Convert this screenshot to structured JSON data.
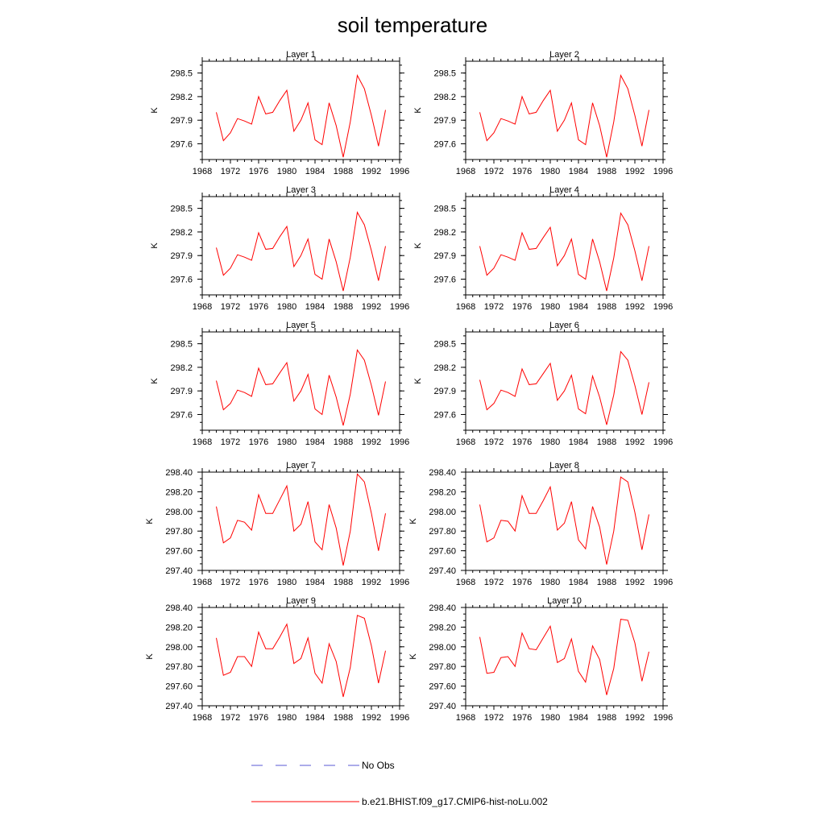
{
  "title": "soil temperature",
  "legend": {
    "items": [
      {
        "label": "No Obs",
        "color": "#5a5ad6",
        "style": "dashed"
      },
      {
        "label": "b.e21.BHIST.f09_g17.CMIP6-hist-noLu.002",
        "color": "#ff0000",
        "style": "solid"
      }
    ]
  },
  "chart_data": [
    {
      "type": "line",
      "title": "Layer 1",
      "ylabel": "K",
      "xlim": [
        1968,
        1996
      ],
      "xticks": [
        "1968",
        "1972",
        "1976",
        "1980",
        "1984",
        "1988",
        "1992",
        "1996"
      ],
      "ylim": [
        297.4,
        298.65
      ],
      "yticks": [
        "297.6",
        "297.9",
        "298.2",
        "298.5"
      ],
      "x": [
        1970,
        1971,
        1972,
        1973,
        1974,
        1975,
        1976,
        1977,
        1978,
        1979,
        1980,
        1981,
        1982,
        1983,
        1984,
        1985,
        1986,
        1987,
        1988,
        1989,
        1990,
        1991,
        1992,
        1993,
        1994
      ],
      "series": [
        {
          "name": "b.e21.BHIST.f09_g17.CMIP6-hist-noLu.002",
          "values": [
            298.0,
            297.64,
            297.74,
            297.92,
            297.89,
            297.85,
            298.2,
            297.98,
            298.0,
            298.15,
            298.28,
            297.76,
            297.9,
            298.12,
            297.65,
            297.59,
            298.12,
            297.83,
            297.43,
            297.88,
            298.47,
            298.3,
            297.96,
            297.57,
            298.03
          ]
        }
      ]
    },
    {
      "type": "line",
      "title": "Layer 2",
      "ylabel": "K",
      "xlim": [
        1968,
        1996
      ],
      "xticks": [
        "1968",
        "1972",
        "1976",
        "1980",
        "1984",
        "1988",
        "1992",
        "1996"
      ],
      "ylim": [
        297.4,
        298.65
      ],
      "yticks": [
        "297.6",
        "297.9",
        "298.2",
        "298.5"
      ],
      "x": [
        1970,
        1971,
        1972,
        1973,
        1974,
        1975,
        1976,
        1977,
        1978,
        1979,
        1980,
        1981,
        1982,
        1983,
        1984,
        1985,
        1986,
        1987,
        1988,
        1989,
        1990,
        1991,
        1992,
        1993,
        1994
      ],
      "series": [
        {
          "name": "b.e21.BHIST.f09_g17.CMIP6-hist-noLu.002",
          "values": [
            298.0,
            297.64,
            297.74,
            297.92,
            297.89,
            297.85,
            298.2,
            297.98,
            298.0,
            298.15,
            298.28,
            297.76,
            297.9,
            298.12,
            297.65,
            297.59,
            298.12,
            297.83,
            297.43,
            297.88,
            298.47,
            298.3,
            297.96,
            297.57,
            298.03
          ]
        }
      ]
    },
    {
      "type": "line",
      "title": "Layer 3",
      "ylabel": "K",
      "xlim": [
        1968,
        1996
      ],
      "xticks": [
        "1968",
        "1972",
        "1976",
        "1980",
        "1984",
        "1988",
        "1992",
        "1996"
      ],
      "ylim": [
        297.4,
        298.65
      ],
      "yticks": [
        "297.6",
        "297.9",
        "298.2",
        "298.5"
      ],
      "x": [
        1970,
        1971,
        1972,
        1973,
        1974,
        1975,
        1976,
        1977,
        1978,
        1979,
        1980,
        1981,
        1982,
        1983,
        1984,
        1985,
        1986,
        1987,
        1988,
        1989,
        1990,
        1991,
        1992,
        1993,
        1994
      ],
      "series": [
        {
          "name": "b.e21.BHIST.f09_g17.CMIP6-hist-noLu.002",
          "values": [
            298.0,
            297.65,
            297.74,
            297.91,
            297.88,
            297.84,
            298.19,
            297.98,
            297.99,
            298.14,
            298.27,
            297.76,
            297.9,
            298.11,
            297.66,
            297.6,
            298.11,
            297.82,
            297.45,
            297.88,
            298.45,
            298.29,
            297.96,
            297.58,
            298.02
          ]
        }
      ]
    },
    {
      "type": "line",
      "title": "Layer 4",
      "ylabel": "K",
      "xlim": [
        1968,
        1996
      ],
      "xticks": [
        "1968",
        "1972",
        "1976",
        "1980",
        "1984",
        "1988",
        "1992",
        "1996"
      ],
      "ylim": [
        297.4,
        298.65
      ],
      "yticks": [
        "297.6",
        "297.9",
        "298.2",
        "298.5"
      ],
      "x": [
        1970,
        1971,
        1972,
        1973,
        1974,
        1975,
        1976,
        1977,
        1978,
        1979,
        1980,
        1981,
        1982,
        1983,
        1984,
        1985,
        1986,
        1987,
        1988,
        1989,
        1990,
        1991,
        1992,
        1993,
        1994
      ],
      "series": [
        {
          "name": "b.e21.BHIST.f09_g17.CMIP6-hist-noLu.002",
          "values": [
            298.02,
            297.65,
            297.74,
            297.91,
            297.88,
            297.84,
            298.19,
            297.98,
            297.99,
            298.13,
            298.26,
            297.77,
            297.9,
            298.11,
            297.66,
            297.6,
            298.11,
            297.82,
            297.45,
            297.87,
            298.44,
            298.29,
            297.96,
            297.58,
            298.02
          ]
        }
      ]
    },
    {
      "type": "line",
      "title": "Layer 5",
      "ylabel": "K",
      "xlim": [
        1968,
        1996
      ],
      "xticks": [
        "1968",
        "1972",
        "1976",
        "1980",
        "1984",
        "1988",
        "1992",
        "1996"
      ],
      "ylim": [
        297.4,
        298.65
      ],
      "yticks": [
        "297.6",
        "297.9",
        "298.2",
        "298.5"
      ],
      "x": [
        1970,
        1971,
        1972,
        1973,
        1974,
        1975,
        1976,
        1977,
        1978,
        1979,
        1980,
        1981,
        1982,
        1983,
        1984,
        1985,
        1986,
        1987,
        1988,
        1989,
        1990,
        1991,
        1992,
        1993,
        1994
      ],
      "series": [
        {
          "name": "b.e21.BHIST.f09_g17.CMIP6-hist-noLu.002",
          "values": [
            298.03,
            297.66,
            297.74,
            297.91,
            297.88,
            297.83,
            298.19,
            297.98,
            297.99,
            298.13,
            298.26,
            297.77,
            297.9,
            298.11,
            297.67,
            297.6,
            298.1,
            297.82,
            297.46,
            297.86,
            298.42,
            298.29,
            297.97,
            297.59,
            298.02
          ]
        }
      ]
    },
    {
      "type": "line",
      "title": "Layer 6",
      "ylabel": "K",
      "xlim": [
        1968,
        1996
      ],
      "xticks": [
        "1968",
        "1972",
        "1976",
        "1980",
        "1984",
        "1988",
        "1992",
        "1996"
      ],
      "ylim": [
        297.4,
        298.65
      ],
      "yticks": [
        "297.6",
        "297.9",
        "298.2",
        "298.5"
      ],
      "x": [
        1970,
        1971,
        1972,
        1973,
        1974,
        1975,
        1976,
        1977,
        1978,
        1979,
        1980,
        1981,
        1982,
        1983,
        1984,
        1985,
        1986,
        1987,
        1988,
        1989,
        1990,
        1991,
        1992,
        1993,
        1994
      ],
      "series": [
        {
          "name": "b.e21.BHIST.f09_g17.CMIP6-hist-noLu.002",
          "values": [
            298.04,
            297.66,
            297.74,
            297.91,
            297.88,
            297.83,
            298.18,
            297.98,
            297.99,
            298.12,
            298.25,
            297.78,
            297.9,
            298.1,
            297.67,
            297.61,
            298.09,
            297.82,
            297.47,
            297.85,
            298.4,
            298.29,
            297.97,
            297.6,
            298.01
          ]
        }
      ]
    },
    {
      "type": "line",
      "title": "Layer 7",
      "ylabel": "K",
      "xlim": [
        1968,
        1996
      ],
      "xticks": [
        "1968",
        "1972",
        "1976",
        "1980",
        "1984",
        "1988",
        "1992",
        "1996"
      ],
      "ylim": [
        297.4,
        298.4
      ],
      "yticks": [
        "297.40",
        "297.60",
        "297.80",
        "298.00",
        "298.20",
        "298.40"
      ],
      "x": [
        1970,
        1971,
        1972,
        1973,
        1974,
        1975,
        1976,
        1977,
        1978,
        1979,
        1980,
        1981,
        1982,
        1983,
        1984,
        1985,
        1986,
        1987,
        1988,
        1989,
        1990,
        1991,
        1992,
        1993,
        1994
      ],
      "series": [
        {
          "name": "b.e21.BHIST.f09_g17.CMIP6-hist-noLu.002",
          "values": [
            298.05,
            297.68,
            297.73,
            297.91,
            297.89,
            297.81,
            298.17,
            297.98,
            297.98,
            298.12,
            298.26,
            297.8,
            297.87,
            298.1,
            297.69,
            297.61,
            298.07,
            297.83,
            297.45,
            297.8,
            298.38,
            298.3,
            297.98,
            297.6,
            297.98
          ]
        }
      ]
    },
    {
      "type": "line",
      "title": "Layer 8",
      "ylabel": "K",
      "xlim": [
        1968,
        1996
      ],
      "xticks": [
        "1968",
        "1972",
        "1976",
        "1980",
        "1984",
        "1988",
        "1992",
        "1996"
      ],
      "ylim": [
        297.4,
        298.4
      ],
      "yticks": [
        "297.40",
        "297.60",
        "297.80",
        "298.00",
        "298.20",
        "298.40"
      ],
      "x": [
        1970,
        1971,
        1972,
        1973,
        1974,
        1975,
        1976,
        1977,
        1978,
        1979,
        1980,
        1981,
        1982,
        1983,
        1984,
        1985,
        1986,
        1987,
        1988,
        1989,
        1990,
        1991,
        1992,
        1993,
        1994
      ],
      "series": [
        {
          "name": "b.e21.BHIST.f09_g17.CMIP6-hist-noLu.002",
          "values": [
            298.07,
            297.69,
            297.73,
            297.91,
            297.9,
            297.8,
            298.16,
            297.98,
            297.98,
            298.11,
            298.25,
            297.81,
            297.88,
            298.1,
            297.71,
            297.62,
            298.05,
            297.84,
            297.46,
            297.8,
            298.35,
            298.3,
            297.99,
            297.61,
            297.97
          ]
        }
      ]
    },
    {
      "type": "line",
      "title": "Layer 9",
      "ylabel": "K",
      "xlim": [
        1968,
        1996
      ],
      "xticks": [
        "1968",
        "1972",
        "1976",
        "1980",
        "1984",
        "1988",
        "1992",
        "1996"
      ],
      "ylim": [
        297.4,
        298.4
      ],
      "yticks": [
        "297.40",
        "297.60",
        "297.80",
        "298.00",
        "298.20",
        "298.40"
      ],
      "x": [
        1970,
        1971,
        1972,
        1973,
        1974,
        1975,
        1976,
        1977,
        1978,
        1979,
        1980,
        1981,
        1982,
        1983,
        1984,
        1985,
        1986,
        1987,
        1988,
        1989,
        1990,
        1991,
        1992,
        1993,
        1994
      ],
      "series": [
        {
          "name": "b.e21.BHIST.f09_g17.CMIP6-hist-noLu.002",
          "values": [
            298.09,
            297.71,
            297.74,
            297.9,
            297.9,
            297.8,
            298.15,
            297.98,
            297.98,
            298.1,
            298.23,
            297.83,
            297.88,
            298.09,
            297.73,
            297.63,
            298.03,
            297.85,
            297.49,
            297.79,
            298.32,
            298.29,
            298.01,
            297.63,
            297.96
          ]
        }
      ]
    },
    {
      "type": "line",
      "title": "Layer 10",
      "ylabel": "K",
      "xlim": [
        1968,
        1996
      ],
      "xticks": [
        "1968",
        "1972",
        "1976",
        "1980",
        "1984",
        "1988",
        "1992",
        "1996"
      ],
      "ylim": [
        297.4,
        298.4
      ],
      "yticks": [
        "297.40",
        "297.60",
        "297.80",
        "298.00",
        "298.20",
        "298.40"
      ],
      "x": [
        1970,
        1971,
        1972,
        1973,
        1974,
        1975,
        1976,
        1977,
        1978,
        1979,
        1980,
        1981,
        1982,
        1983,
        1984,
        1985,
        1986,
        1987,
        1988,
        1989,
        1990,
        1991,
        1992,
        1993,
        1994
      ],
      "series": [
        {
          "name": "b.e21.BHIST.f09_g17.CMIP6-hist-noLu.002",
          "values": [
            298.1,
            297.73,
            297.74,
            297.89,
            297.9,
            297.8,
            298.14,
            297.98,
            297.97,
            298.09,
            298.21,
            297.84,
            297.88,
            298.08,
            297.75,
            297.64,
            298.01,
            297.87,
            297.51,
            297.78,
            298.28,
            298.27,
            298.04,
            297.65,
            297.95
          ]
        }
      ]
    }
  ]
}
